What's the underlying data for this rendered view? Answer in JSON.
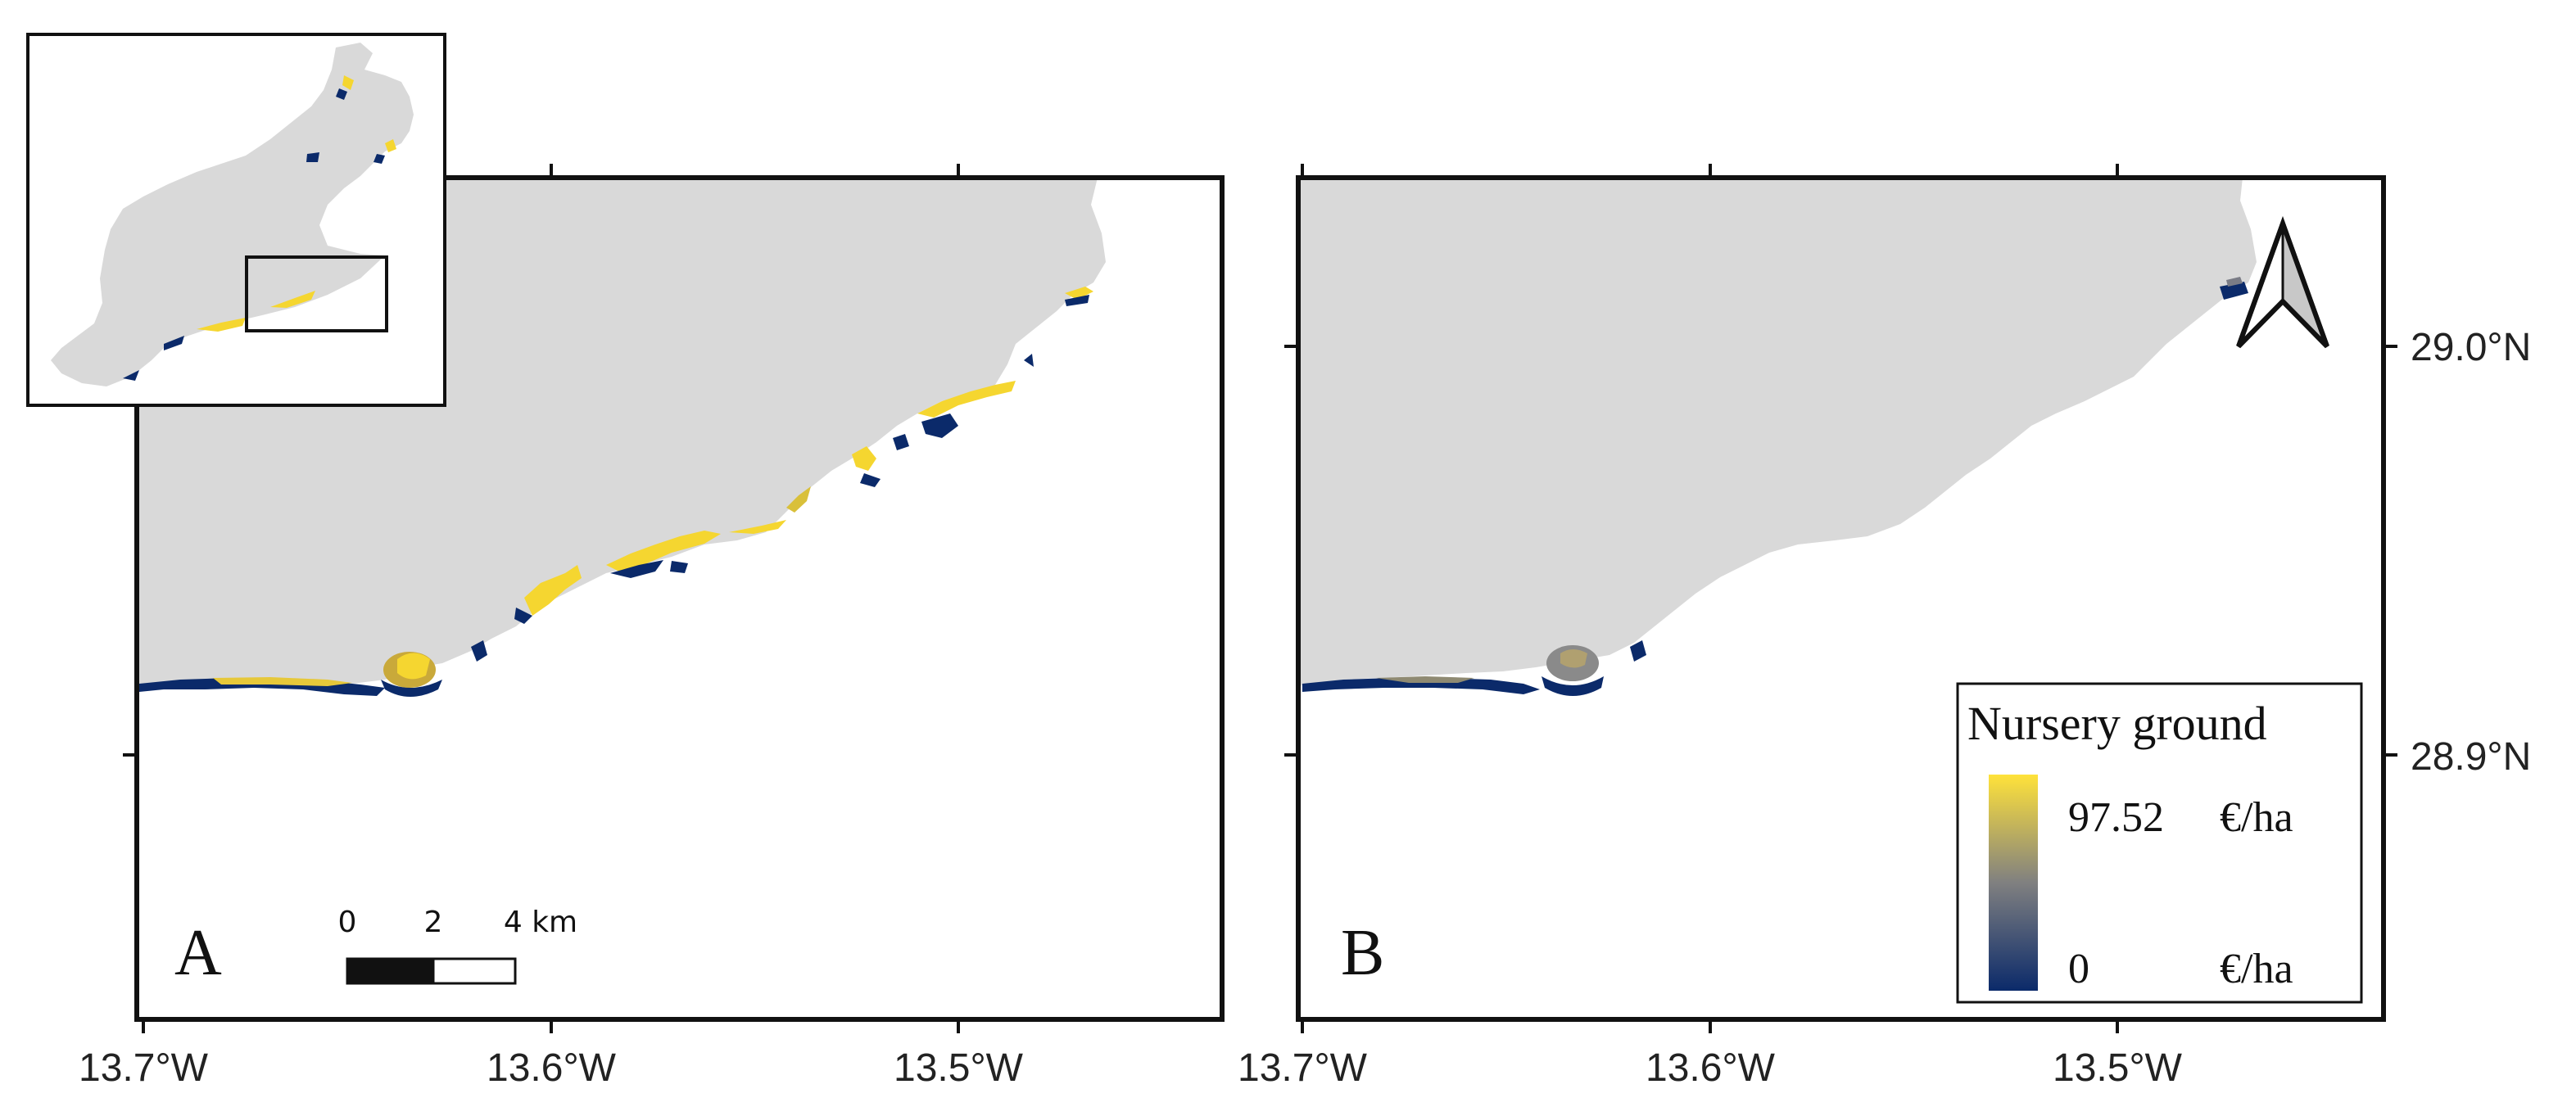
{
  "colors": {
    "land": "#d9d9d9",
    "sea": "#ffffff",
    "frame": "#111111",
    "high": "#ffe23a",
    "mid": "#808080",
    "low": "#0b2a6a"
  },
  "panel_a": {
    "letter": "A",
    "x_ticks": [
      "13.7°W",
      "13.6°W",
      "13.5°W"
    ]
  },
  "panel_b": {
    "letter": "B",
    "x_ticks": [
      "13.7°W",
      "13.6°W",
      "13.5°W"
    ],
    "y_ticks": [
      "29.0°N",
      "28.9°N"
    ]
  },
  "scale_bar": {
    "labels": [
      "0",
      "2",
      "4 km"
    ]
  },
  "legend": {
    "title": "Nursery ground",
    "max_value": "97.52",
    "min_value": "0",
    "unit_max": "€/ha",
    "unit_min": "€/ha"
  },
  "icons": {
    "north_arrow": "north-arrow-icon"
  }
}
